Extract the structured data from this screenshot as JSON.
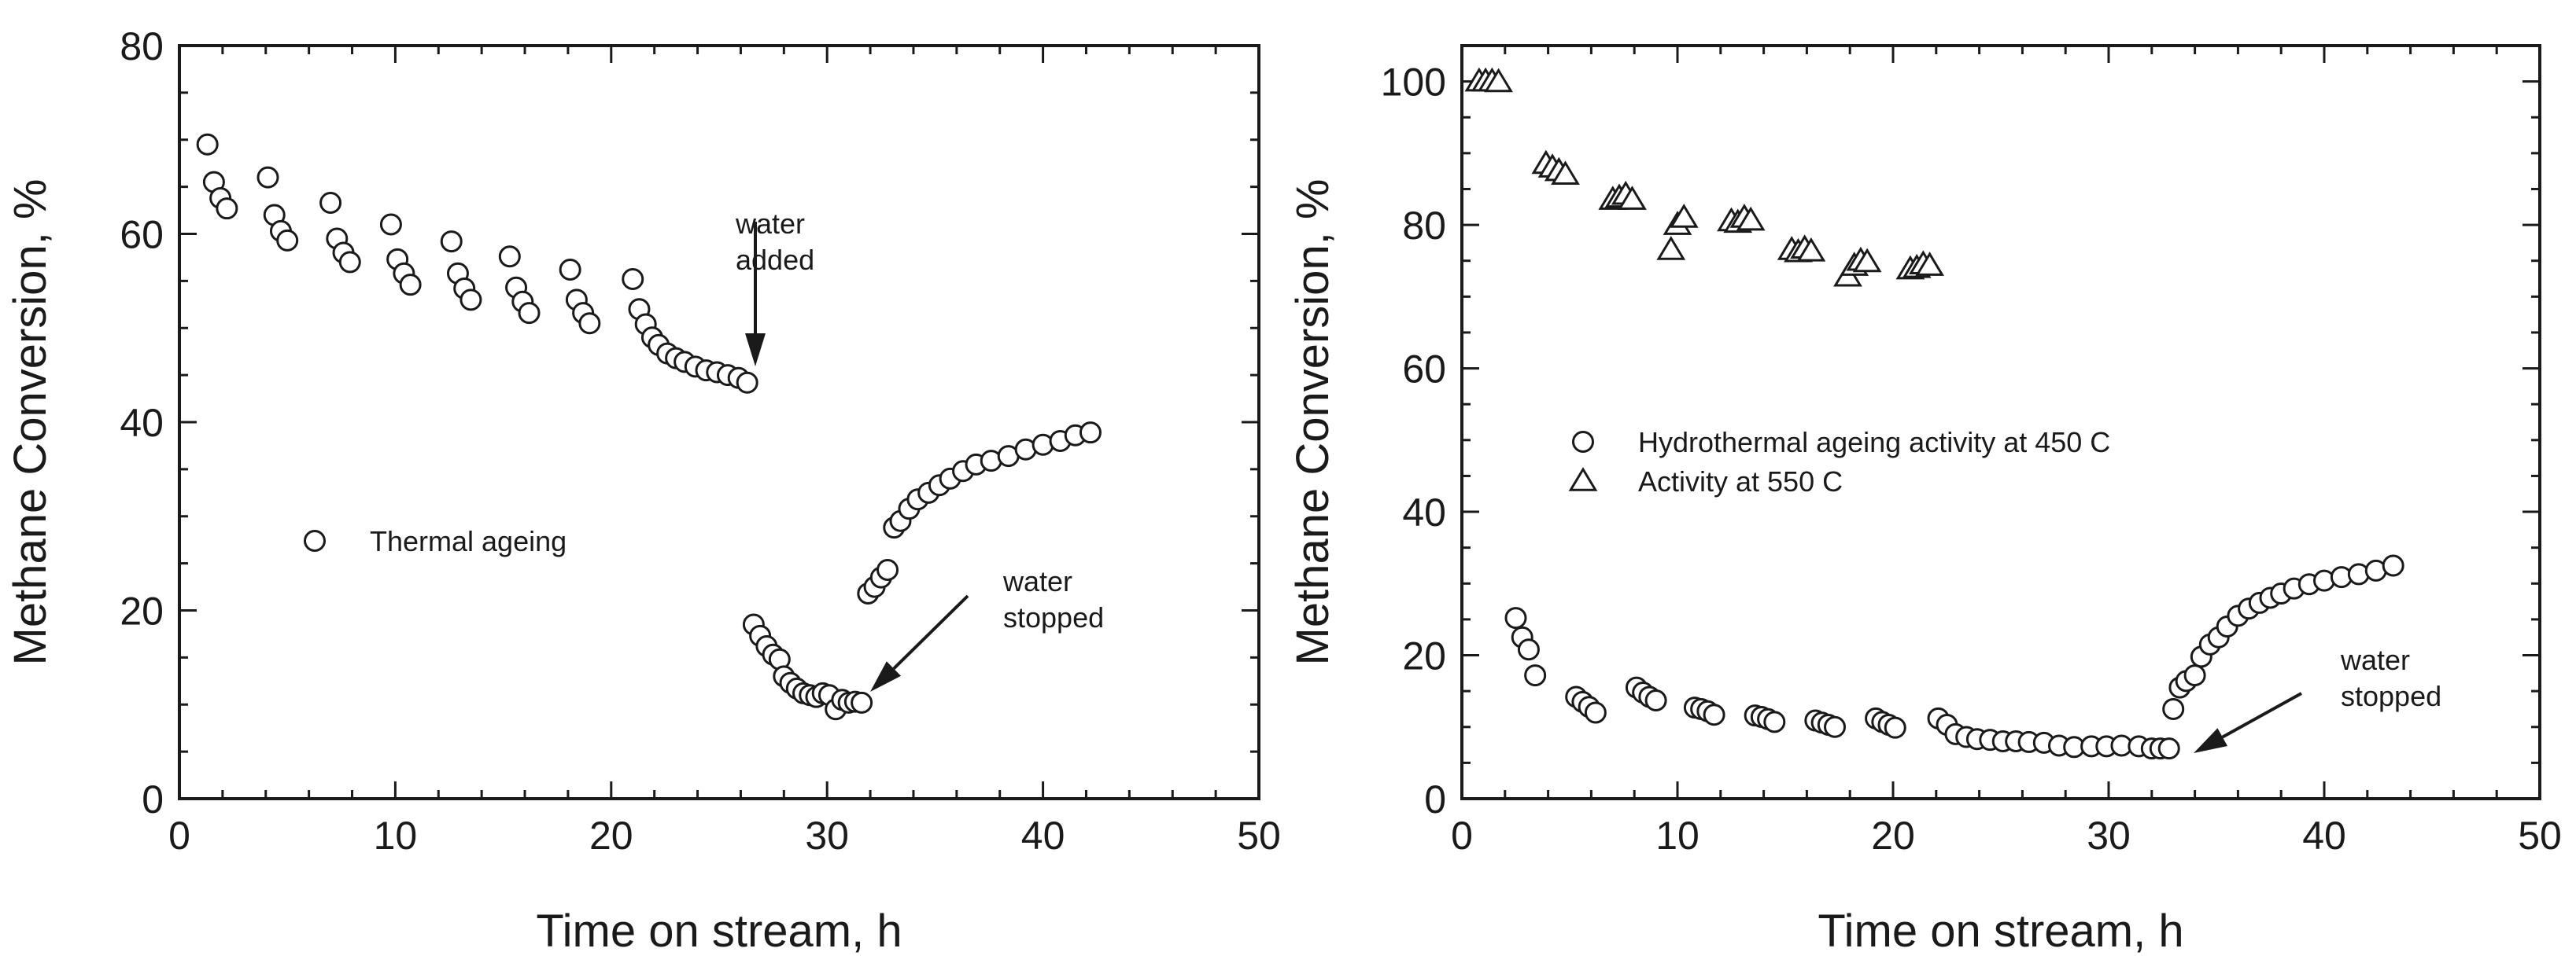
{
  "chart_data": [
    {
      "type": "scatter",
      "xlabel": "Time on stream, h",
      "ylabel": "Methane Conversion, %",
      "xlim": [
        0,
        50
      ],
      "ylim": [
        0,
        80
      ],
      "xticks": [
        "0",
        "10",
        "20",
        "30",
        "40",
        "50"
      ],
      "yticks": [
        "0",
        "20",
        "40",
        "60",
        "80"
      ],
      "grid": false,
      "legend": {
        "placement": "left-middle"
      },
      "series": [
        {
          "name": "Thermal ageing",
          "marker": "circle",
          "points": [
            [
              1.3,
              69.5
            ],
            [
              1.6,
              65.5
            ],
            [
              1.9,
              63.8
            ],
            [
              2.2,
              62.7
            ],
            [
              4.1,
              66.0
            ],
            [
              4.4,
              62.0
            ],
            [
              4.7,
              60.3
            ],
            [
              5.0,
              59.3
            ],
            [
              7.0,
              63.3
            ],
            [
              7.3,
              59.5
            ],
            [
              7.6,
              58.0
            ],
            [
              7.9,
              57.0
            ],
            [
              9.8,
              61.0
            ],
            [
              10.1,
              57.3
            ],
            [
              10.4,
              55.8
            ],
            [
              10.7,
              54.6
            ],
            [
              12.6,
              59.2
            ],
            [
              12.9,
              55.8
            ],
            [
              13.2,
              54.2
            ],
            [
              13.5,
              53.0
            ],
            [
              15.3,
              57.6
            ],
            [
              15.6,
              54.3
            ],
            [
              15.9,
              52.8
            ],
            [
              16.2,
              51.6
            ],
            [
              18.1,
              56.2
            ],
            [
              18.4,
              53.0
            ],
            [
              18.7,
              51.6
            ],
            [
              19.0,
              50.5
            ],
            [
              21.0,
              55.2
            ],
            [
              21.3,
              52.0
            ],
            [
              21.6,
              50.4
            ],
            [
              21.9,
              49.0
            ],
            [
              22.2,
              48.2
            ],
            [
              22.6,
              47.3
            ],
            [
              23.0,
              46.8
            ],
            [
              23.4,
              46.4
            ],
            [
              23.9,
              45.9
            ],
            [
              24.4,
              45.5
            ],
            [
              24.9,
              45.3
            ],
            [
              25.4,
              45.0
            ],
            [
              25.9,
              44.7
            ],
            [
              26.3,
              44.2
            ],
            [
              26.6,
              18.5
            ],
            [
              26.9,
              17.3
            ],
            [
              27.2,
              16.2
            ],
            [
              27.5,
              15.3
            ],
            [
              27.8,
              14.8
            ],
            [
              28.0,
              13.0
            ],
            [
              28.3,
              12.3
            ],
            [
              28.6,
              11.7
            ],
            [
              28.9,
              11.2
            ],
            [
              29.2,
              11.0
            ],
            [
              29.5,
              10.8
            ],
            [
              29.8,
              11.2
            ],
            [
              30.1,
              11.0
            ],
            [
              30.4,
              9.5
            ],
            [
              30.7,
              10.5
            ],
            [
              31.0,
              10.2
            ],
            [
              31.3,
              10.3
            ],
            [
              31.6,
              10.2
            ],
            [
              31.9,
              21.8
            ],
            [
              32.2,
              22.5
            ],
            [
              32.5,
              23.5
            ],
            [
              32.8,
              24.3
            ],
            [
              33.1,
              28.8
            ],
            [
              33.4,
              29.5
            ],
            [
              33.8,
              30.8
            ],
            [
              34.2,
              31.8
            ],
            [
              34.7,
              32.5
            ],
            [
              35.2,
              33.3
            ],
            [
              35.7,
              34.0
            ],
            [
              36.3,
              34.8
            ],
            [
              36.9,
              35.5
            ],
            [
              37.6,
              35.9
            ],
            [
              38.4,
              36.4
            ],
            [
              39.2,
              37.1
            ],
            [
              40.0,
              37.6
            ],
            [
              40.8,
              38.0
            ],
            [
              41.5,
              38.6
            ],
            [
              42.2,
              38.9
            ]
          ]
        }
      ],
      "annotations": [
        {
          "lines": [
            "water",
            "added"
          ],
          "x": 27.0,
          "y": 44.5
        },
        {
          "lines": [
            "water",
            "stopped"
          ],
          "x": 32.0,
          "y": 11.5
        }
      ]
    },
    {
      "type": "scatter",
      "xlabel": "Time on stream, h",
      "ylabel": "Methane Conversion, %",
      "xlim": [
        0,
        50
      ],
      "ylim": [
        0,
        105
      ],
      "xticks": [
        "0",
        "10",
        "20",
        "30",
        "40",
        "50"
      ],
      "yticks": [
        "0",
        "20",
        "40",
        "60",
        "80",
        "100"
      ],
      "grid": false,
      "legend": {
        "placement": "left-middle"
      },
      "series": [
        {
          "name": "Hydrothermal ageing activity at 450 C",
          "marker": "circle",
          "points": [
            [
              2.5,
              25.2
            ],
            [
              2.8,
              22.5
            ],
            [
              3.1,
              20.8
            ],
            [
              3.4,
              17.2
            ],
            [
              5.3,
              14.2
            ],
            [
              5.6,
              13.5
            ],
            [
              5.9,
              12.8
            ],
            [
              6.2,
              12.0
            ],
            [
              8.1,
              15.5
            ],
            [
              8.4,
              14.8
            ],
            [
              8.7,
              14.2
            ],
            [
              9.0,
              13.7
            ],
            [
              10.8,
              12.7
            ],
            [
              11.1,
              12.5
            ],
            [
              11.4,
              12.2
            ],
            [
              11.7,
              11.7
            ],
            [
              13.6,
              11.6
            ],
            [
              13.9,
              11.4
            ],
            [
              14.2,
              11.1
            ],
            [
              14.5,
              10.7
            ],
            [
              16.4,
              10.9
            ],
            [
              16.7,
              10.6
            ],
            [
              17.0,
              10.3
            ],
            [
              17.3,
              10.0
            ],
            [
              19.2,
              11.2
            ],
            [
              19.5,
              10.7
            ],
            [
              19.8,
              10.3
            ],
            [
              20.1,
              9.9
            ],
            [
              22.1,
              11.2
            ],
            [
              22.5,
              10.3
            ],
            [
              22.9,
              9.0
            ],
            [
              23.4,
              8.6
            ],
            [
              23.9,
              8.3
            ],
            [
              24.5,
              8.2
            ],
            [
              25.1,
              8.0
            ],
            [
              25.7,
              8.0
            ],
            [
              26.3,
              7.9
            ],
            [
              27.0,
              7.8
            ],
            [
              27.7,
              7.4
            ],
            [
              28.4,
              7.2
            ],
            [
              29.2,
              7.3
            ],
            [
              29.9,
              7.3
            ],
            [
              30.6,
              7.4
            ],
            [
              31.4,
              7.3
            ],
            [
              32.0,
              7.0
            ],
            [
              32.4,
              7.0
            ],
            [
              32.8,
              7.0
            ],
            [
              33.0,
              12.5
            ],
            [
              33.3,
              15.5
            ],
            [
              33.6,
              16.4
            ],
            [
              34.0,
              17.2
            ],
            [
              34.3,
              19.8
            ],
            [
              34.7,
              21.5
            ],
            [
              35.1,
              22.5
            ],
            [
              35.5,
              24.0
            ],
            [
              36.0,
              25.5
            ],
            [
              36.5,
              26.5
            ],
            [
              37.0,
              27.3
            ],
            [
              37.5,
              28.0
            ],
            [
              38.0,
              28.6
            ],
            [
              38.6,
              29.3
            ],
            [
              39.3,
              29.9
            ],
            [
              40.0,
              30.4
            ],
            [
              40.8,
              30.9
            ],
            [
              41.6,
              31.3
            ],
            [
              42.4,
              31.8
            ],
            [
              43.2,
              32.5
            ]
          ]
        },
        {
          "name": "Activity at 550 C",
          "marker": "triangle",
          "points": [
            [
              0.8,
              100.0
            ],
            [
              1.1,
              100.0
            ],
            [
              1.4,
              100.0
            ],
            [
              1.7,
              99.9
            ],
            [
              3.9,
              88.5
            ],
            [
              4.2,
              88.0
            ],
            [
              4.5,
              87.5
            ],
            [
              4.8,
              87.0
            ],
            [
              7.0,
              83.5
            ],
            [
              7.3,
              83.8
            ],
            [
              7.6,
              84.2
            ],
            [
              7.9,
              83.5
            ],
            [
              9.7,
              76.5
            ],
            [
              10.0,
              80.0
            ],
            [
              10.3,
              81.0
            ],
            [
              12.5,
              80.5
            ],
            [
              12.8,
              80.3
            ],
            [
              13.1,
              81.0
            ],
            [
              13.4,
              80.6
            ],
            [
              15.3,
              76.5
            ],
            [
              15.6,
              76.2
            ],
            [
              15.9,
              76.7
            ],
            [
              16.2,
              76.3
            ],
            [
              17.9,
              72.8
            ],
            [
              18.2,
              74.3
            ],
            [
              18.5,
              75.0
            ],
            [
              18.8,
              74.8
            ],
            [
              20.8,
              73.8
            ],
            [
              21.1,
              74.0
            ],
            [
              21.4,
              74.5
            ],
            [
              21.7,
              74.3
            ]
          ]
        }
      ],
      "annotations": [
        {
          "lines": [
            "water",
            "stopped"
          ],
          "x": 33.0,
          "y": 7.0
        }
      ]
    }
  ]
}
